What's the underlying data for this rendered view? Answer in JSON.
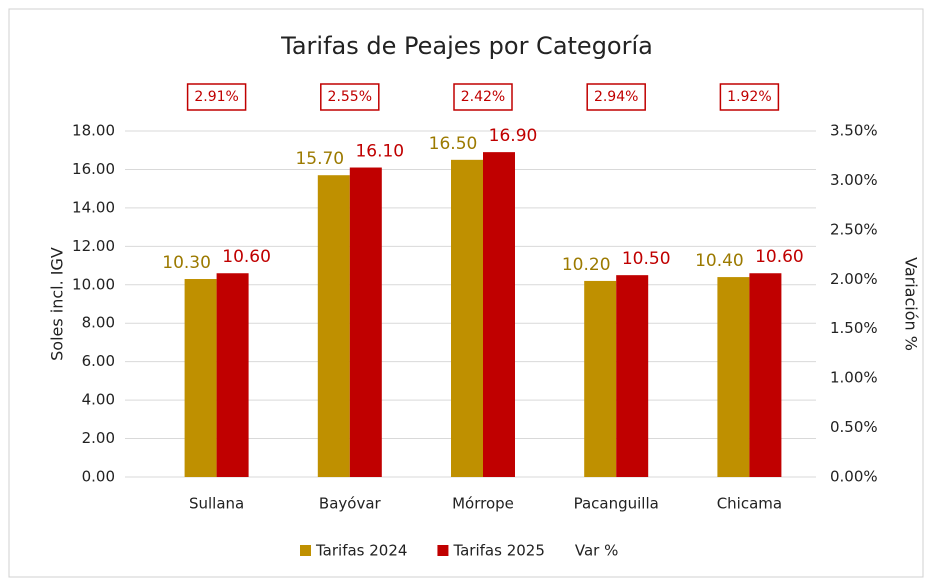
{
  "chart_data": {
    "type": "bar",
    "title": "Tarifas de Peajes por Categoría",
    "ylabel": "Soles incl. IGV",
    "y2label": "Variación %",
    "categories": [
      "Sullana",
      "Bayóvar",
      "Mórrope",
      "Pacanguilla",
      "Chicama"
    ],
    "series": [
      {
        "name": "Tarifas 2024",
        "color": "#bf9000",
        "values": [
          10.3,
          15.7,
          16.5,
          10.2,
          10.4
        ],
        "value_labels": [
          "10.30",
          "15.70",
          "16.50",
          "10.20",
          "10.40"
        ]
      },
      {
        "name": "Tarifas 2025",
        "color": "#c00000",
        "values": [
          10.6,
          16.1,
          16.9,
          10.5,
          10.6
        ],
        "value_labels": [
          "10.60",
          "16.10",
          "16.90",
          "10.50",
          "10.60"
        ]
      },
      {
        "name": "Var %",
        "axis": "y2",
        "values": [
          2.91,
          2.55,
          2.42,
          2.94,
          1.92
        ],
        "value_labels": [
          "2.91%",
          "2.55%",
          "2.42%",
          "2.94%",
          "1.92%"
        ]
      }
    ],
    "ylim": [
      0,
      18
    ],
    "yticks": [
      {
        "value": 0,
        "label": "0.00"
      },
      {
        "value": 2,
        "label": "2.00"
      },
      {
        "value": 4,
        "label": "4.00"
      },
      {
        "value": 6,
        "label": "6.00"
      },
      {
        "value": 8,
        "label": "8.00"
      },
      {
        "value": 10,
        "label": "10.00"
      },
      {
        "value": 12,
        "label": "12.00"
      },
      {
        "value": 14,
        "label": "14.00"
      },
      {
        "value": 16,
        "label": "16.00"
      },
      {
        "value": 18,
        "label": "18.00"
      }
    ],
    "y2lim": [
      0,
      3.5
    ],
    "y2ticks": [
      {
        "value": 0,
        "label": "0.00%"
      },
      {
        "value": 0.5,
        "label": "0.50%"
      },
      {
        "value": 1,
        "label": "1.00%"
      },
      {
        "value": 1.5,
        "label": "1.50%"
      },
      {
        "value": 2,
        "label": "2.00%"
      },
      {
        "value": 2.5,
        "label": "2.50%"
      },
      {
        "value": 3,
        "label": "3.00%"
      },
      {
        "value": 3.5,
        "label": "3.50%"
      }
    ],
    "grid": true,
    "legend": "bottom"
  }
}
